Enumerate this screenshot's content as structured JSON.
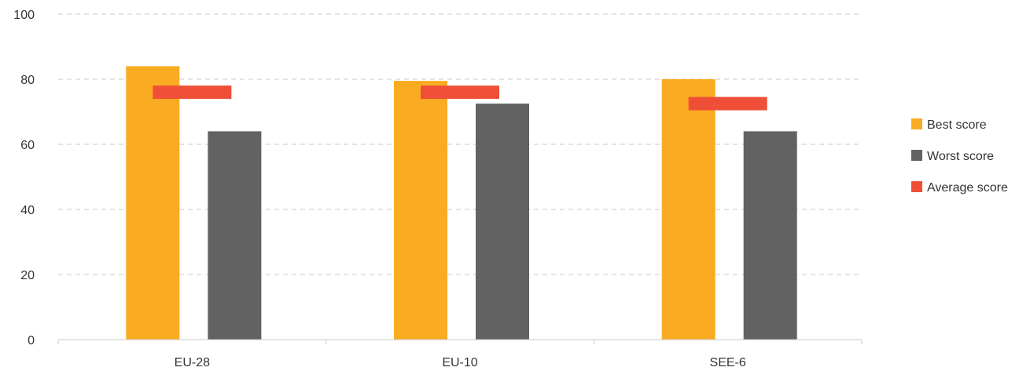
{
  "chart_data": {
    "type": "bar",
    "categories": [
      "EU-28",
      "EU-10",
      "SEE-6"
    ],
    "series": [
      {
        "name": "Best score",
        "values": [
          84,
          79.5,
          80
        ],
        "color": "#F9AC22",
        "mark": "bar"
      },
      {
        "name": "Worst score",
        "values": [
          64,
          72.5,
          64
        ],
        "color": "#626263",
        "mark": "bar"
      },
      {
        "name": "Average score",
        "values": [
          76,
          76,
          72.5
        ],
        "color": "#EF4F37",
        "mark": "marker"
      }
    ],
    "ylim": [
      0,
      100
    ],
    "yticks": [
      0,
      20,
      40,
      60,
      80,
      100
    ],
    "grid": true,
    "legend": "right"
  }
}
